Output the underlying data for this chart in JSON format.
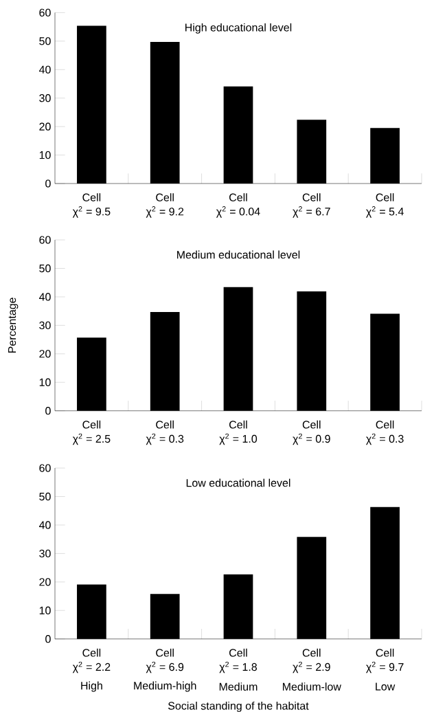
{
  "chart_data": [
    {
      "type": "bar",
      "title": "High educational level",
      "categories": [
        null,
        null,
        null,
        null,
        null
      ],
      "values": [
        55.4,
        49.7,
        34.1,
        22.4,
        19.5
      ],
      "color": "#000000",
      "ylim": [
        0,
        60
      ],
      "yticks": [
        0,
        10,
        20,
        30,
        40,
        50,
        60
      ],
      "annotations": [
        "Cell",
        "χ$^{2}$ = 9.5",
        "Cell",
        "χ$^{2}$ = 9.2",
        "Cell",
        "χ$^{2}$ = 0.04",
        "Cell",
        "χ$^{2}$ = 6.7",
        "Cell",
        "χ$^{2}$ = 5.4"
      ]
    },
    {
      "type": "bar",
      "title": "Medium educational level",
      "ylabel": "Percentage",
      "categories": [
        null,
        null,
        null,
        null,
        null
      ],
      "values": [
        25.7,
        34.7,
        43.4,
        41.9,
        34.1
      ],
      "color": "#000000",
      "ylim": [
        0,
        60
      ],
      "yticks": [
        0,
        10,
        20,
        30,
        40,
        50,
        60
      ],
      "annotations": [
        "Cell",
        "χ$^{2}$ = 2.5",
        "Cell",
        "χ$^{2}$ = 0.3",
        "Cell",
        "χ$^{2}$ = 1.0",
        "Cell",
        "χ$^{2}$ = 0.9",
        "Cell",
        "χ$^{2}$ = 0.3"
      ]
    },
    {
      "type": "bar",
      "title": "Low educational level",
      "xlabel": "Social standing of the habitat",
      "categories": [
        "High",
        "Medium-high",
        "Medium",
        "Medium-low",
        "Low"
      ],
      "values": [
        19.1,
        15.8,
        22.7,
        35.8,
        46.3
      ],
      "color": "#000000",
      "ylim": [
        0,
        60
      ],
      "yticks": [
        0,
        10,
        20,
        30,
        40,
        50,
        60
      ],
      "annotations": [
        "Cell",
        "χ$^{2}$ = 2.2",
        "Cell",
        "χ$^{2}$ = 6.9",
        "Cell",
        "χ$^{2}$ = 1.8",
        "Cell",
        "χ$^{2}$ = 2.9",
        "Cell",
        "χ$^{2}$ = 9.7"
      ]
    }
  ]
}
